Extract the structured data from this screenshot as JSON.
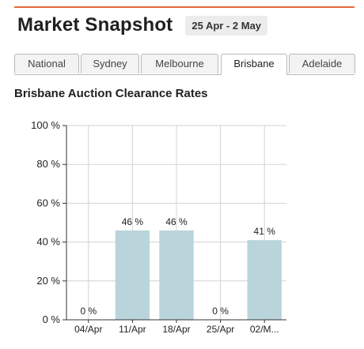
{
  "header": {
    "title": "Market Snapshot",
    "date_range": "25 Apr - 2 May"
  },
  "tabs": [
    {
      "label": "National",
      "active": false
    },
    {
      "label": "Sydney",
      "active": false
    },
    {
      "label": "Melbourne",
      "active": false
    },
    {
      "label": "Brisbane",
      "active": true
    },
    {
      "label": "Adelaide",
      "active": false
    }
  ],
  "colors": {
    "accent": "#e8673a",
    "bar": "#b9d4da",
    "grid": "#d3d3d3"
  },
  "chart_data": {
    "type": "bar",
    "title": "Brisbane Auction Clearance Rates",
    "categories": [
      "04/Apr",
      "11/Apr",
      "18/Apr",
      "25/Apr",
      "02/M..."
    ],
    "values": [
      0,
      46,
      46,
      0,
      41
    ],
    "data_labels": [
      "0 %",
      "46 %",
      "46 %",
      "0 %",
      "41 %"
    ],
    "yticks": [
      0,
      20,
      40,
      60,
      80,
      100
    ],
    "ytick_labels": [
      "0 %",
      "20 %",
      "40 %",
      "60 %",
      "80 %",
      "100 %"
    ],
    "ylim": [
      0,
      100
    ],
    "grid": true
  }
}
